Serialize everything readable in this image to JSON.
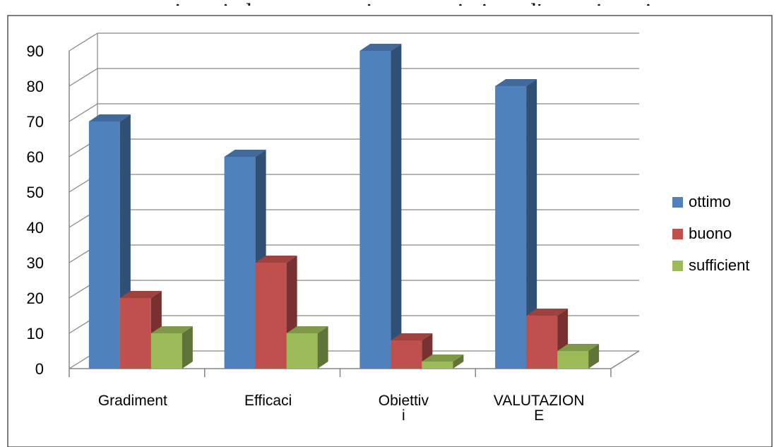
{
  "chart_data": {
    "type": "bar",
    "title": "... partecipanti al progetto sui partenariati per l'organizzazione",
    "categories": [
      "Gradiment",
      "Efficaci",
      "Obiettiv\ni",
      "VALUTAZION\nE"
    ],
    "series": [
      {
        "name": "ottimo",
        "values": [
          70,
          60,
          90,
          80
        ],
        "color": "#4F81BD"
      },
      {
        "name": "buono",
        "values": [
          20,
          30,
          8,
          15
        ],
        "color": "#C0504D"
      },
      {
        "name": "sufficient",
        "values": [
          10,
          10,
          2,
          5
        ],
        "color": "#9BBB59"
      }
    ],
    "yticks": [
      0,
      10,
      20,
      30,
      40,
      50,
      60,
      70,
      80,
      90
    ],
    "ylim": [
      0,
      90
    ],
    "grid": true,
    "legend": "right",
    "three_d": true
  }
}
